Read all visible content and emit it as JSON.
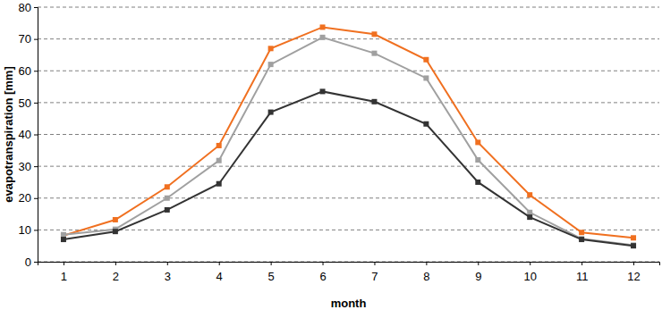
{
  "chart_data": {
    "type": "line",
    "x_label": "month",
    "y_label": "evapotranspiration [mm]",
    "categories": [
      "1",
      "2",
      "3",
      "4",
      "5",
      "6",
      "7",
      "8",
      "9",
      "10",
      "11",
      "12"
    ],
    "series": [
      {
        "color": "#f07020",
        "marker": "square",
        "line_style": "solid",
        "values": [
          8.2,
          13.2,
          23.5,
          36.5,
          67,
          73.7,
          71.5,
          63.5,
          37.5,
          21,
          9.2,
          7.5
        ]
      },
      {
        "color": "#a0a0a0",
        "marker": "square",
        "line_style": "solid",
        "values": [
          8.5,
          10.2,
          20,
          31.8,
          62,
          70.5,
          65.5,
          57.7,
          32,
          15.5,
          7.2,
          5.2
        ]
      },
      {
        "color": "#333333",
        "marker": "square",
        "line_style": "solid",
        "values": [
          7,
          9.5,
          16.3,
          24.5,
          47,
          53.5,
          50.3,
          43.3,
          25,
          14,
          7,
          5
        ]
      }
    ],
    "ylim": [
      0,
      80
    ],
    "yticks": [
      0,
      10,
      20,
      30,
      40,
      50,
      60,
      70,
      80
    ],
    "grid": true
  }
}
